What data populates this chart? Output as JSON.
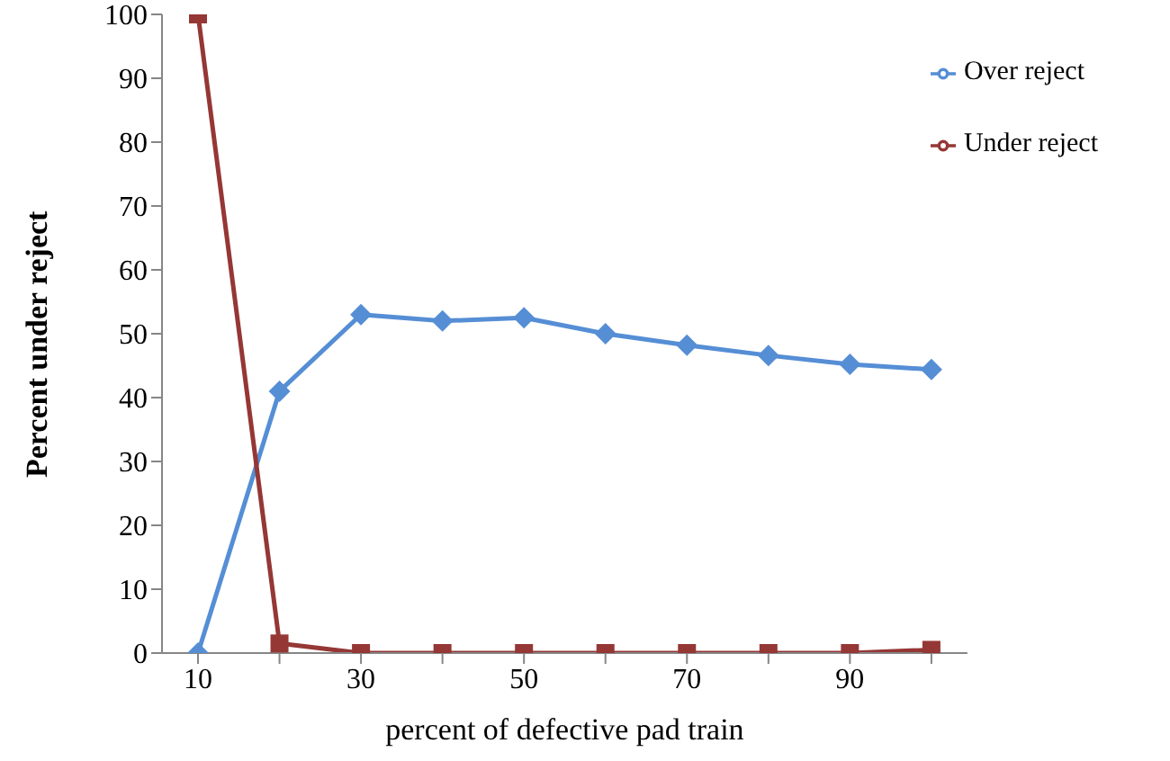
{
  "chart_data": {
    "type": "line",
    "xlabel": "percent of defective pad train",
    "ylabel": "Percent under reject",
    "categories": [
      "10",
      null,
      "30",
      null,
      "50",
      null,
      "70",
      null,
      "90",
      null
    ],
    "series": [
      {
        "name": "Over reject",
        "color": "#558ed5",
        "marker": "diamond",
        "values": [
          0,
          41,
          53,
          52,
          52.5,
          50,
          48.2,
          46.6,
          45.2,
          44.4
        ]
      },
      {
        "name": "Under reject",
        "color": "#953735",
        "marker": "square",
        "values": [
          100,
          1.5,
          0,
          0,
          0,
          0,
          0,
          0,
          0,
          0.5
        ]
      }
    ],
    "ylim": [
      0,
      100
    ],
    "yticks": [
      0,
      10,
      20,
      30,
      40,
      50,
      60,
      70,
      80,
      90,
      100
    ],
    "grid": false,
    "legend": "top right",
    "line_style": "solid"
  }
}
